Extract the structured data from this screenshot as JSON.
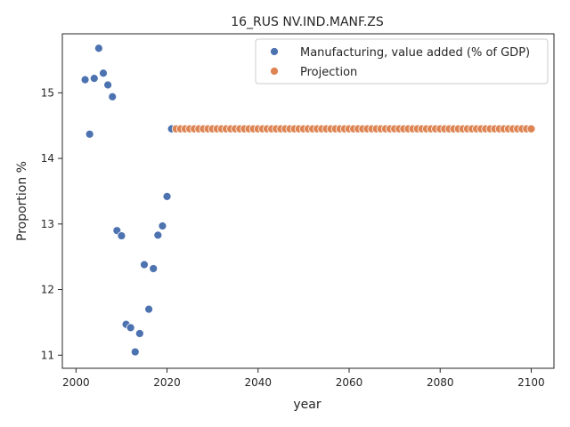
{
  "chart_data": {
    "type": "scatter",
    "title": "16_RUS NV.IND.MANF.ZS",
    "xlabel": "year",
    "ylabel": "Proportion %",
    "xlim": [
      1997,
      2105
    ],
    "ylim": [
      10.8,
      15.9
    ],
    "xticks": [
      2000,
      2020,
      2040,
      2060,
      2080,
      2100
    ],
    "yticks": [
      11,
      12,
      13,
      14,
      15
    ],
    "grid": false,
    "legend_position": "top-right",
    "series": [
      {
        "name": "Manufacturing, value added (% of GDP)",
        "color": "#4c72b0",
        "x": [
          2002,
          2003,
          2004,
          2005,
          2006,
          2007,
          2008,
          2009,
          2010,
          2011,
          2012,
          2013,
          2014,
          2015,
          2016,
          2017,
          2018,
          2019,
          2020,
          2021
        ],
        "y": [
          15.2,
          14.37,
          15.22,
          15.68,
          15.3,
          15.12,
          14.94,
          12.9,
          12.82,
          11.47,
          11.42,
          11.05,
          11.33,
          12.38,
          11.7,
          12.32,
          12.83,
          12.97,
          13.42,
          14.45
        ]
      },
      {
        "name": "Projection",
        "color": "#dd8452",
        "x_start": 2022,
        "x_end": 2100,
        "value": 14.45
      }
    ]
  }
}
